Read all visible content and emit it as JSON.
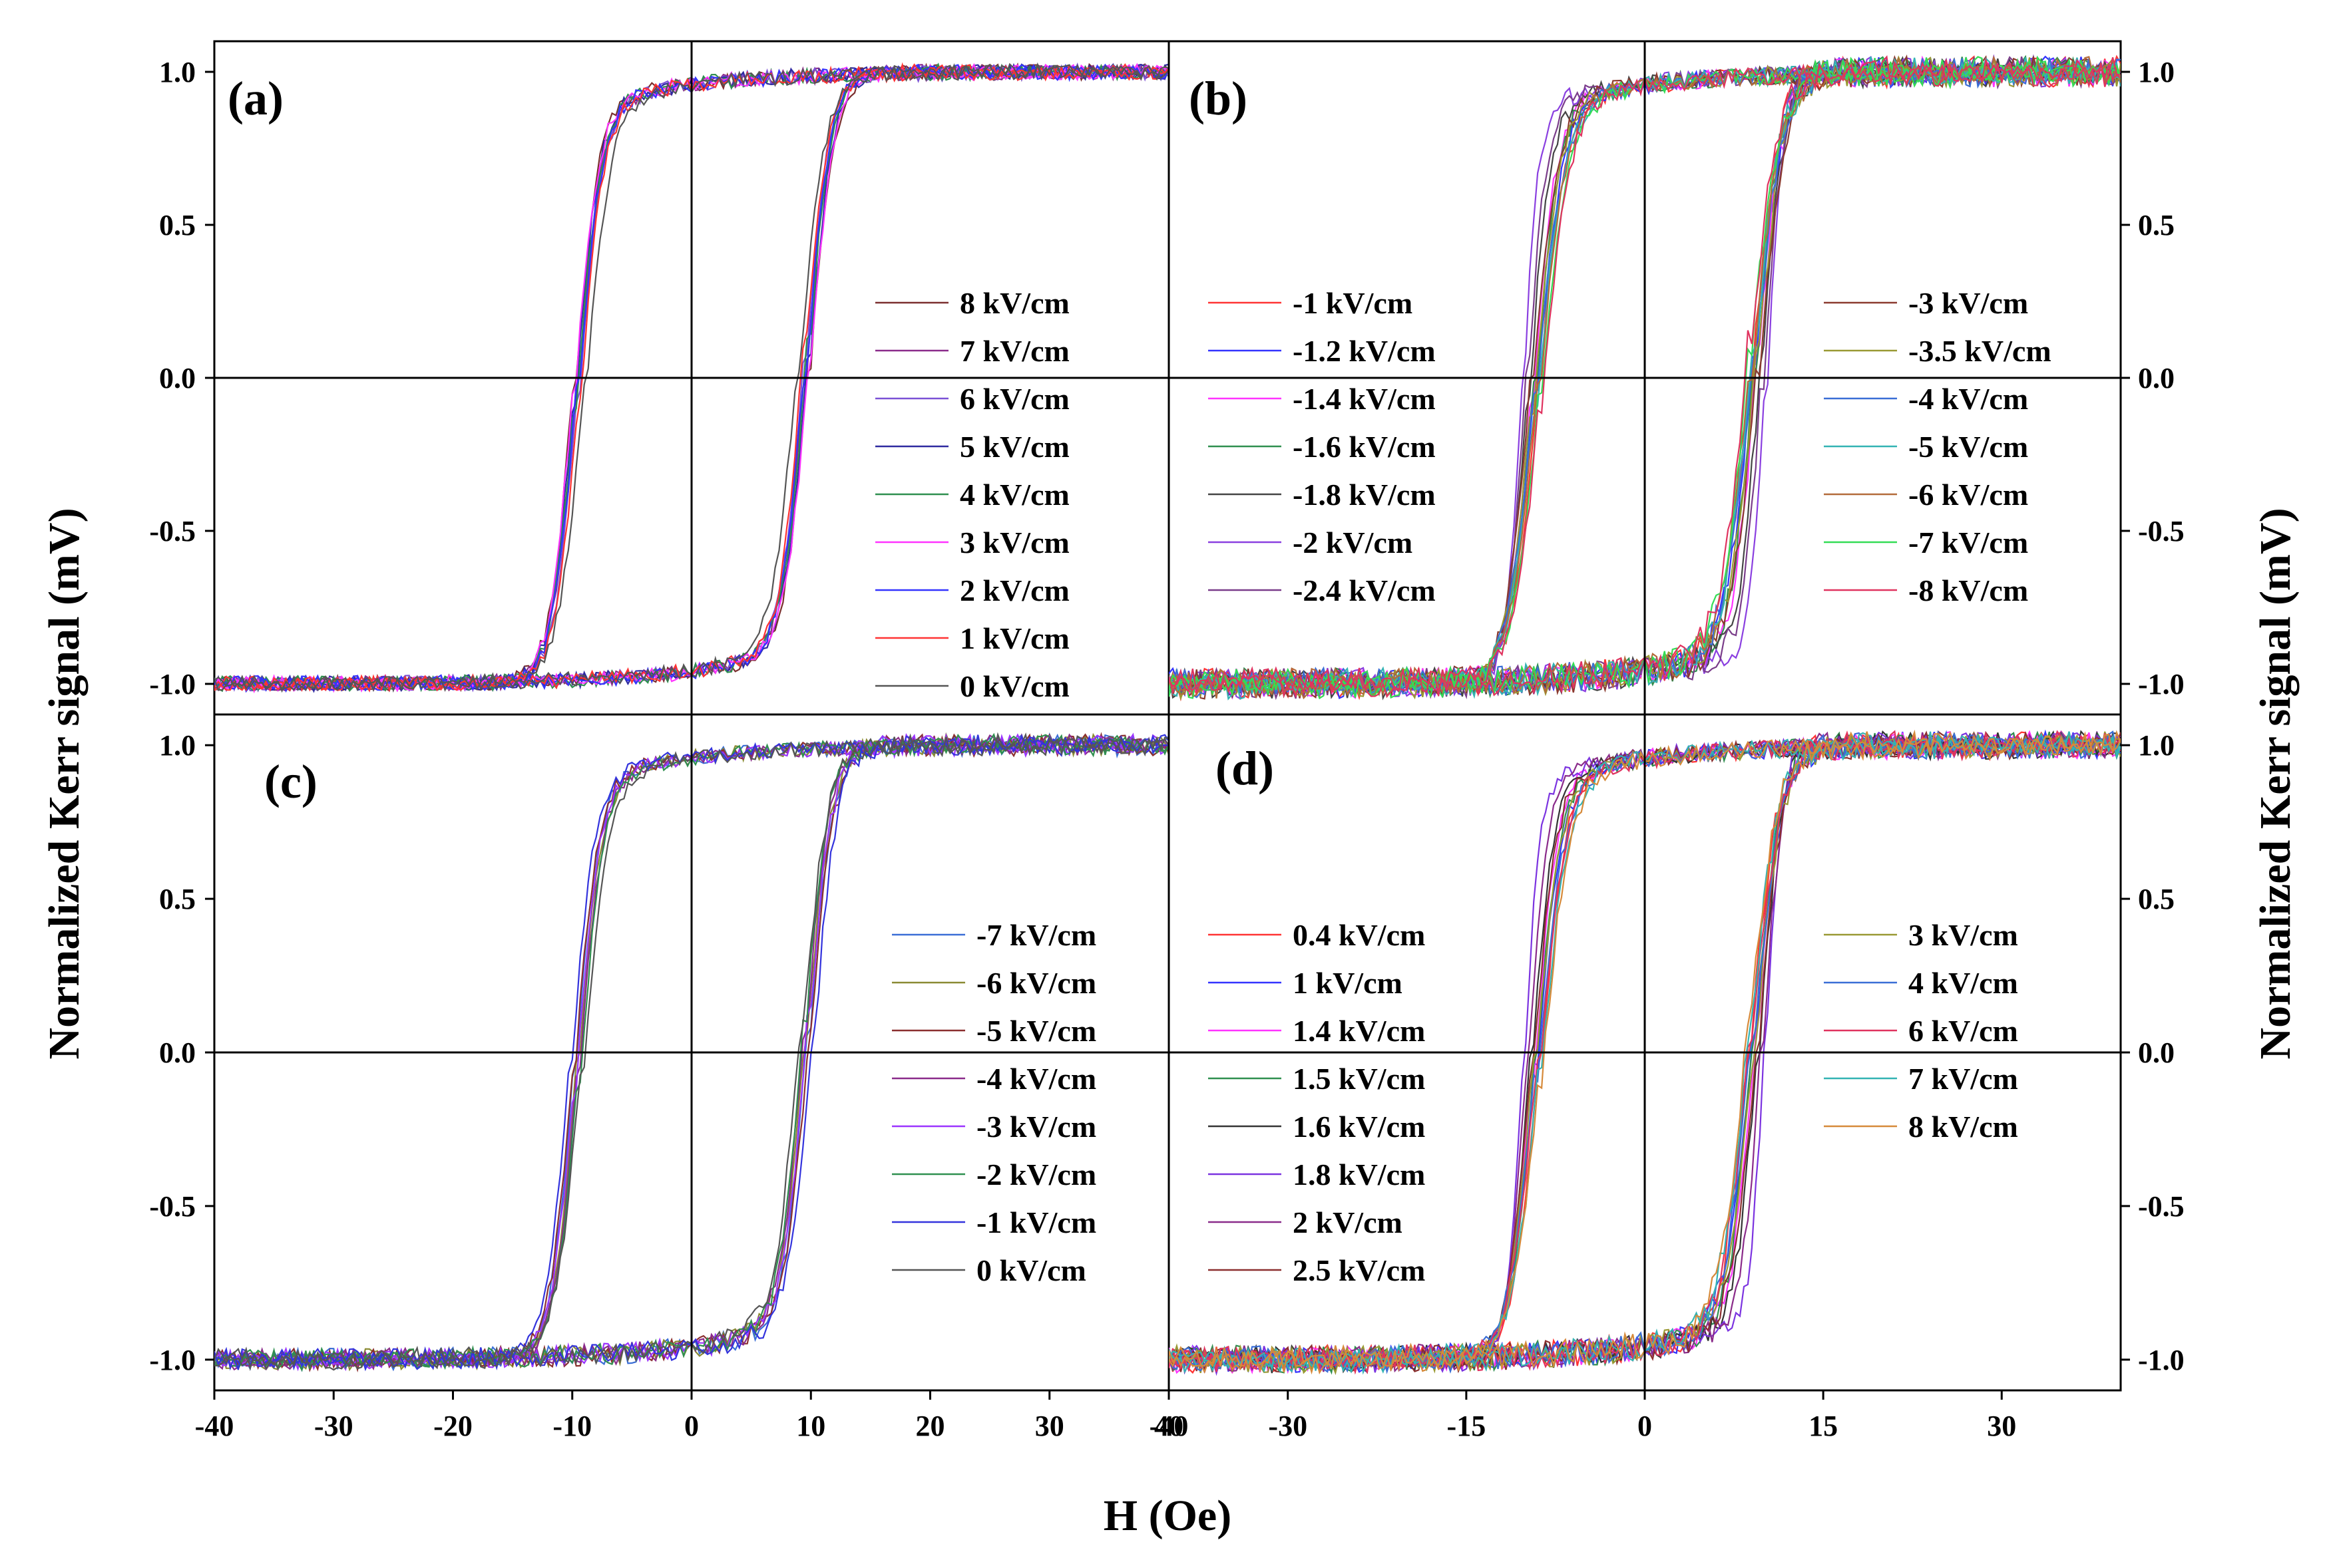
{
  "figure": {
    "x_axis_title": "H (Oe)",
    "y_axis_title_left": "Normalized Kerr signal (mV)",
    "y_axis_title_right": "Normalized Kerr signal (mV)"
  },
  "chart_data": [
    {
      "id": "a",
      "panel_label": "(a)",
      "type": "line",
      "description_of_curves": "magnetic hysteresis loops",
      "xlim": [
        -40,
        40
      ],
      "ylim": [
        -1.1,
        1.1
      ],
      "x_ticks": [
        "-40",
        "-30",
        "-20",
        "-10",
        "0",
        "10",
        "20",
        "30",
        "40"
      ],
      "x_tick_values": [
        -40,
        -30,
        -20,
        -10,
        0,
        10,
        20,
        30,
        40
      ],
      "y_ticks": [
        "-1.0",
        "-0.5",
        "0.0",
        "0.5",
        "1.0"
      ],
      "y_tick_values": [
        -1.0,
        -0.5,
        0.0,
        0.5,
        1.0
      ],
      "y_ticks_side": "left",
      "legend_position": "right",
      "series": [
        {
          "name": "8 kV/cm",
          "color": "#7b2f2f",
          "hc": 9.9,
          "w": 2.4,
          "nu": 0.05,
          "nd": 0.05
        },
        {
          "name": "7 kV/cm",
          "color": "#8a2b8a",
          "hc": 9.6,
          "w": 2.4,
          "nu": 0.05,
          "nd": 0.05
        },
        {
          "name": "6 kV/cm",
          "color": "#7b52d6",
          "hc": 9.5,
          "w": 2.4,
          "nu": 0.05,
          "nd": 0.05
        },
        {
          "name": "5 kV/cm",
          "color": "#2e2aa0",
          "hc": 9.8,
          "w": 2.4,
          "nu": 0.05,
          "nd": 0.05
        },
        {
          "name": "4 kV/cm",
          "color": "#2f8f4f",
          "hc": 9.7,
          "w": 2.4,
          "nu": 0.05,
          "nd": 0.05
        },
        {
          "name": "3 kV/cm",
          "color": "#ff33ff",
          "hc": 9.9,
          "w": 2.4,
          "nu": 0.05,
          "nd": 0.05
        },
        {
          "name": "2 kV/cm",
          "color": "#3333ff",
          "hc": 9.6,
          "w": 2.4,
          "nu": 0.05,
          "nd": 0.05
        },
        {
          "name": "1 kV/cm",
          "color": "#ff3333",
          "hc": 9.4,
          "w": 2.4,
          "nu": 0.05,
          "nd": 0.05
        },
        {
          "name": "0 kV/cm",
          "color": "#555555",
          "hc": 9.0,
          "w": 2.6,
          "nu": 0.05,
          "nd": 0.05
        }
      ]
    },
    {
      "id": "b",
      "panel_label": "(b)",
      "type": "line",
      "description_of_curves": "magnetic hysteresis loops",
      "xlim": [
        -40,
        40
      ],
      "ylim": [
        -1.1,
        1.1
      ],
      "x_ticks": [
        "-40",
        "-30",
        "-15",
        "0",
        "15",
        "30"
      ],
      "x_tick_values": [
        -40,
        -30,
        -15,
        0,
        15,
        30
      ],
      "y_ticks": [
        "-1.0",
        "-0.5",
        "0.0",
        "0.5",
        "1.0"
      ],
      "y_tick_values": [
        -1.0,
        -0.5,
        0.0,
        0.5,
        1.0
      ],
      "y_ticks_side": "right",
      "legend_position": "left and right columns",
      "series": [
        {
          "name": "-1 kV/cm",
          "color": "#ff3333",
          "hc": 9.0,
          "w": 2.6,
          "nu": 0.1,
          "nd": 0.06
        },
        {
          "name": "-1.2 kV/cm",
          "color": "#3333ff",
          "hc": 9.2,
          "w": 2.6,
          "nu": 0.1,
          "nd": 0.06
        },
        {
          "name": "-1.4 kV/cm",
          "color": "#ff33ff",
          "hc": 9.5,
          "w": 2.4,
          "nu": 0.1,
          "nd": 0.06
        },
        {
          "name": "-1.6 kV/cm",
          "color": "#2f8f4f",
          "hc": 9.3,
          "w": 2.4,
          "nu": 0.1,
          "nd": 0.06
        },
        {
          "name": "-1.8 kV/cm",
          "color": "#444444",
          "hc": 9.8,
          "w": 2.2,
          "nu": 0.1,
          "nd": 0.06
        },
        {
          "name": "-2 kV/cm",
          "color": "#8a3fe0",
          "hc": 10.3,
          "w": 1.6,
          "nu": 0.1,
          "nd": 0.06
        },
        {
          "name": "-2.4 kV/cm",
          "color": "#7a3d8a",
          "hc": 10.0,
          "w": 2.0,
          "nu": 0.1,
          "nd": 0.06
        },
        {
          "name": "-3 kV/cm",
          "color": "#8b3a2f",
          "hc": 9.6,
          "w": 2.6,
          "nu": 0.1,
          "nd": 0.06
        },
        {
          "name": "-3.5 kV/cm",
          "color": "#999933",
          "hc": 9.4,
          "w": 2.6,
          "nu": 0.1,
          "nd": 0.06
        },
        {
          "name": "-4 kV/cm",
          "color": "#3a6ed6",
          "hc": 9.2,
          "w": 2.8,
          "nu": 0.1,
          "nd": 0.06
        },
        {
          "name": "-5 kV/cm",
          "color": "#33b3b3",
          "hc": 9.1,
          "w": 2.8,
          "nu": 0.1,
          "nd": 0.06
        },
        {
          "name": "-6 kV/cm",
          "color": "#b36b3a",
          "hc": 9.0,
          "w": 2.8,
          "nu": 0.1,
          "nd": 0.06
        },
        {
          "name": "-7 kV/cm",
          "color": "#33dd55",
          "hc": 8.8,
          "w": 2.8,
          "nu": 0.1,
          "nd": 0.06
        },
        {
          "name": "-8 kV/cm",
          "color": "#e0335f",
          "hc": 8.7,
          "w": 2.8,
          "nu": 0.1,
          "nd": 0.06
        }
      ]
    },
    {
      "id": "c",
      "panel_label": "(c)",
      "type": "line",
      "description_of_curves": "magnetic hysteresis loops",
      "xlim": [
        -40,
        40
      ],
      "ylim": [
        -1.1,
        1.1
      ],
      "x_ticks": [
        "-40",
        "-30",
        "-20",
        "-10",
        "0",
        "10",
        "20",
        "30",
        "40"
      ],
      "x_tick_values": [
        -40,
        -30,
        -20,
        -10,
        0,
        10,
        20,
        30,
        40
      ],
      "y_ticks": [
        "-1.0",
        "-0.5",
        "0.0",
        "0.5",
        "1.0"
      ],
      "y_tick_values": [
        -1.0,
        -0.5,
        0.0,
        0.5,
        1.0
      ],
      "y_ticks_side": "left",
      "legend_position": "right",
      "series": [
        {
          "name": "-7 kV/cm",
          "color": "#3a6ed6",
          "hc": 9.8,
          "w": 2.4,
          "nu": 0.07,
          "nd": 0.05
        },
        {
          "name": "-6 kV/cm",
          "color": "#8a8a33",
          "hc": 9.6,
          "w": 2.4,
          "nu": 0.07,
          "nd": 0.05
        },
        {
          "name": "-5 kV/cm",
          "color": "#8b2f2f",
          "hc": 9.9,
          "w": 2.4,
          "nu": 0.07,
          "nd": 0.05
        },
        {
          "name": "-4 kV/cm",
          "color": "#8a2b8a",
          "hc": 9.5,
          "w": 2.4,
          "nu": 0.07,
          "nd": 0.05
        },
        {
          "name": "-3 kV/cm",
          "color": "#9b33ff",
          "hc": 9.7,
          "w": 2.4,
          "nu": 0.07,
          "nd": 0.05
        },
        {
          "name": "-2 kV/cm",
          "color": "#2f8f4f",
          "hc": 9.4,
          "w": 2.4,
          "nu": 0.07,
          "nd": 0.05
        },
        {
          "name": "-1 kV/cm",
          "color": "#3333dd",
          "hc": 10.2,
          "w": 2.4,
          "nu": 0.07,
          "nd": 0.05
        },
        {
          "name": "0 kV/cm",
          "color": "#555555",
          "hc": 9.2,
          "w": 2.6,
          "nu": 0.07,
          "nd": 0.05
        }
      ]
    },
    {
      "id": "d",
      "panel_label": "(d)",
      "type": "line",
      "description_of_curves": "magnetic hysteresis loops",
      "xlim": [
        -40,
        40
      ],
      "ylim": [
        -1.1,
        1.1
      ],
      "x_ticks": [
        "-40",
        "-30",
        "-15",
        "0",
        "15",
        "30"
      ],
      "x_tick_values": [
        -40,
        -30,
        -15,
        0,
        15,
        30
      ],
      "y_ticks": [
        "-1.0",
        "-0.5",
        "0.0",
        "0.5",
        "1.0"
      ],
      "y_tick_values": [
        -1.0,
        -0.5,
        0.0,
        0.5,
        1.0
      ],
      "y_ticks_side": "right",
      "legend_position": "left and right columns",
      "series": [
        {
          "name": "0.4 kV/cm",
          "color": "#ff3333",
          "hc": 8.9,
          "w": 2.6,
          "nu": 0.09,
          "nd": 0.06
        },
        {
          "name": "1 kV/cm",
          "color": "#3333ff",
          "hc": 9.2,
          "w": 2.6,
          "nu": 0.09,
          "nd": 0.06
        },
        {
          "name": "1.4 kV/cm",
          "color": "#ff33ff",
          "hc": 9.4,
          "w": 2.4,
          "nu": 0.09,
          "nd": 0.06
        },
        {
          "name": "1.5 kV/cm",
          "color": "#2f8f4f",
          "hc": 9.2,
          "w": 2.4,
          "nu": 0.09,
          "nd": 0.06
        },
        {
          "name": "1.6 kV/cm",
          "color": "#333333",
          "hc": 9.6,
          "w": 2.2,
          "nu": 0.09,
          "nd": 0.06
        },
        {
          "name": "1.8 kV/cm",
          "color": "#7b33e0",
          "hc": 10.2,
          "w": 1.6,
          "nu": 0.09,
          "nd": 0.06
        },
        {
          "name": "2 kV/cm",
          "color": "#8a2b8a",
          "hc": 9.9,
          "w": 2.0,
          "nu": 0.09,
          "nd": 0.06
        },
        {
          "name": "2.5 kV/cm",
          "color": "#8b2f2f",
          "hc": 9.5,
          "w": 2.4,
          "nu": 0.09,
          "nd": 0.06
        },
        {
          "name": "3 kV/cm",
          "color": "#999933",
          "hc": 9.3,
          "w": 2.6,
          "nu": 0.09,
          "nd": 0.06
        },
        {
          "name": "4 kV/cm",
          "color": "#3a6ed6",
          "hc": 9.1,
          "w": 2.8,
          "nu": 0.09,
          "nd": 0.06
        },
        {
          "name": "6 kV/cm",
          "color": "#e0335f",
          "hc": 9.0,
          "w": 2.8,
          "nu": 0.09,
          "nd": 0.06
        },
        {
          "name": "7 kV/cm",
          "color": "#33b3b3",
          "hc": 8.8,
          "w": 2.8,
          "nu": 0.09,
          "nd": 0.06
        },
        {
          "name": "8 kV/cm",
          "color": "#d68a3a",
          "hc": 8.7,
          "w": 2.8,
          "nu": 0.09,
          "nd": 0.06
        }
      ]
    }
  ]
}
